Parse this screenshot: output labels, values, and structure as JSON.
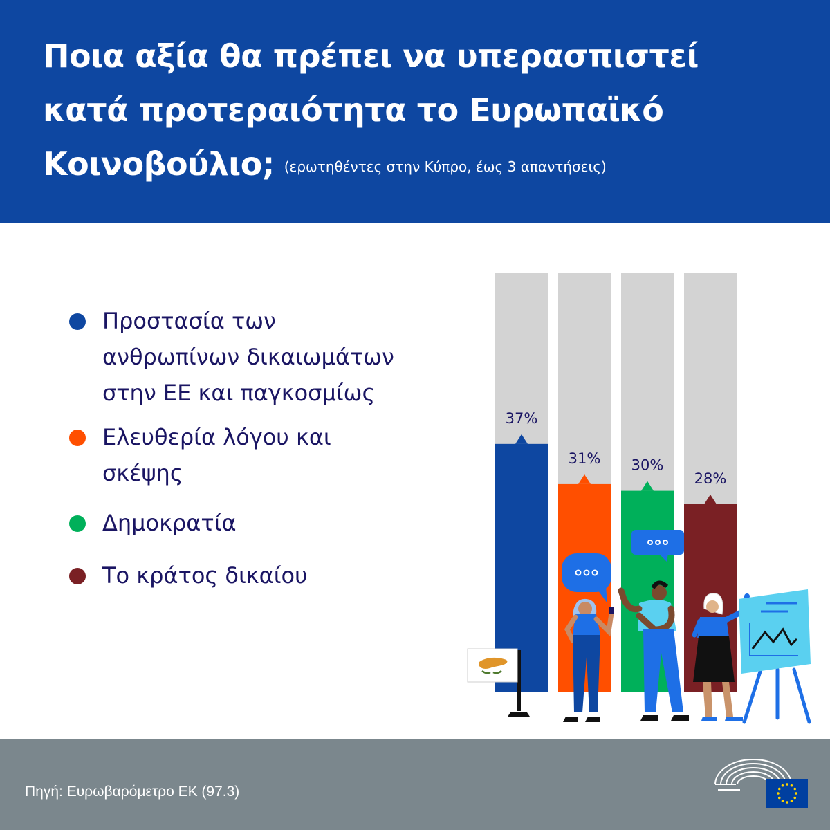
{
  "header": {
    "title_line1": "Ποια αξία θα πρέπει να υπερασπιστεί",
    "title_line2": "κατά προτεραιότητα το Ευρωπαϊκό",
    "title_line3": "Κοινοβούλιο;",
    "subtitle": "(ερωτηθέντες στην Κύπρο, έως 3 απαντήσεις)"
  },
  "legend": {
    "items": [
      {
        "lines": [
          "Προστασία των",
          "ανθρωπίνων δικαιωμάτων",
          "στην ΕΕ και παγκοσμίως"
        ],
        "color": "#0e47a1"
      },
      {
        "lines": [
          "Ελευθερία λόγου και",
          "σκέψης"
        ],
        "color": "#ff4f00"
      },
      {
        "lines": [
          "Δημοκρατία"
        ],
        "color": "#00b05a"
      },
      {
        "lines": [
          "Το κράτος δικαίου"
        ],
        "color": "#7a2024"
      }
    ]
  },
  "chart_data": {
    "type": "bar",
    "categories": [
      "Προστασία των ανθρωπίνων δικαιωμάτων στην ΕΕ και παγκοσμίως",
      "Ελευθερία λόγου και σκέψης",
      "Δημοκρατία",
      "Το κράτος δικαίου"
    ],
    "values": [
      37,
      31,
      30,
      28
    ],
    "value_labels": [
      "37%",
      "31%",
      "30%",
      "28%"
    ],
    "colors": [
      "#0e47a1",
      "#ff4f00",
      "#00b05a",
      "#7a2024"
    ],
    "background_color": "#d3d3d3",
    "label_color": "#1a1563",
    "ylim": [
      0,
      100
    ],
    "grid": false,
    "legend_placement": "left"
  },
  "illustration": {
    "icons": [
      "cyprus-flag-icon",
      "speech-bubble-icon",
      "person-icon",
      "presentation-board-icon"
    ]
  },
  "footer": {
    "source": "Πηγή: Ευρωβαρόμετρο ΕΚ (97.3)"
  }
}
